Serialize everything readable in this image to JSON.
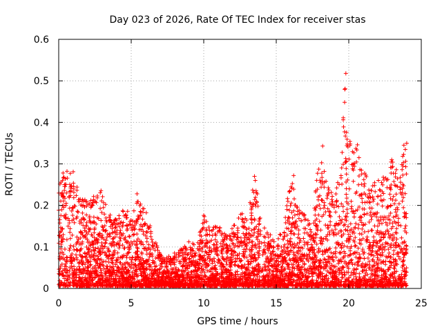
{
  "chart_data": {
    "type": "scatter",
    "title": "Day 023 of 2026, Rate Of TEC Index for receiver stas",
    "xlabel": "GPS time / hours",
    "ylabel": "ROTI / TECUs",
    "xlim": [
      0,
      25
    ],
    "ylim": [
      0,
      0.6
    ],
    "xticks": [
      "0",
      "5",
      "10",
      "15",
      "20",
      "25"
    ],
    "yticks": [
      "0",
      "0.1",
      "0.2",
      "0.3",
      "0.4",
      "0.5",
      "0.6"
    ],
    "grid": true,
    "marker": "+",
    "color": "#ff0000",
    "envelope": [
      [
        0.0,
        0.24
      ],
      [
        0.5,
        0.28
      ],
      [
        1.0,
        0.27
      ],
      [
        1.5,
        0.22
      ],
      [
        2.0,
        0.21
      ],
      [
        2.5,
        0.24
      ],
      [
        3.0,
        0.23
      ],
      [
        3.5,
        0.18
      ],
      [
        4.0,
        0.16
      ],
      [
        4.5,
        0.19
      ],
      [
        5.0,
        0.17
      ],
      [
        5.5,
        0.21
      ],
      [
        6.0,
        0.19
      ],
      [
        6.5,
        0.12
      ],
      [
        7.0,
        0.08
      ],
      [
        7.5,
        0.07
      ],
      [
        8.0,
        0.08
      ],
      [
        8.5,
        0.09
      ],
      [
        9.0,
        0.11
      ],
      [
        9.5,
        0.1
      ],
      [
        10.0,
        0.17
      ],
      [
        10.5,
        0.14
      ],
      [
        11.0,
        0.15
      ],
      [
        11.5,
        0.13
      ],
      [
        12.0,
        0.14
      ],
      [
        12.5,
        0.18
      ],
      [
        13.0,
        0.16
      ],
      [
        13.5,
        0.27
      ],
      [
        14.0,
        0.15
      ],
      [
        14.5,
        0.13
      ],
      [
        15.0,
        0.1
      ],
      [
        15.5,
        0.15
      ],
      [
        16.0,
        0.27
      ],
      [
        16.5,
        0.19
      ],
      [
        17.0,
        0.17
      ],
      [
        17.5,
        0.16
      ],
      [
        18.0,
        0.34
      ],
      [
        18.5,
        0.25
      ],
      [
        19.0,
        0.22
      ],
      [
        19.5,
        0.3
      ],
      [
        19.7,
        0.52
      ],
      [
        20.0,
        0.35
      ],
      [
        20.5,
        0.34
      ],
      [
        21.0,
        0.29
      ],
      [
        21.5,
        0.24
      ],
      [
        22.0,
        0.26
      ],
      [
        22.5,
        0.27
      ],
      [
        23.0,
        0.31
      ],
      [
        23.5,
        0.29
      ],
      [
        24.0,
        0.35
      ]
    ],
    "outliers": [
      [
        19.8,
        0.518
      ],
      [
        19.75,
        0.481
      ],
      [
        19.85,
        0.376
      ],
      [
        19.9,
        0.348
      ],
      [
        18.2,
        0.343
      ],
      [
        20.1,
        0.348
      ],
      [
        20.6,
        0.346
      ],
      [
        13.5,
        0.27
      ],
      [
        16.2,
        0.272
      ],
      [
        23.8,
        0.345
      ],
      [
        23.9,
        0.335
      ],
      [
        0.3,
        0.278
      ],
      [
        1.0,
        0.281
      ],
      [
        5.4,
        0.228
      ],
      [
        10.0,
        0.176
      ]
    ]
  }
}
